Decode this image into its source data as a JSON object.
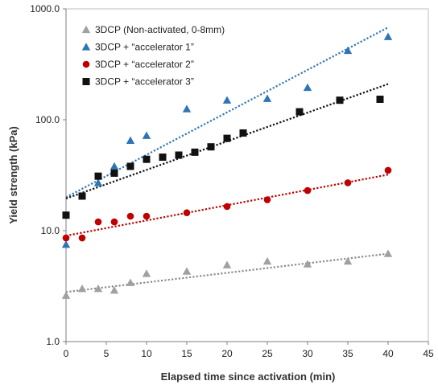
{
  "chart_data": {
    "type": "scatter",
    "title": "",
    "xlabel": "Elapsed time since activation (min)",
    "ylabel": "Yield strength (kPa)",
    "xlim": [
      0,
      45
    ],
    "ylim": [
      1,
      1000
    ],
    "y_scale": "log",
    "x_ticks": [
      "0",
      "5",
      "10",
      "15",
      "20",
      "25",
      "30",
      "35",
      "40",
      "45"
    ],
    "y_ticks": [
      "1.0",
      "10.0",
      "100.0",
      "1000.0"
    ],
    "grid": false,
    "legend_position": "top-left",
    "series": [
      {
        "name": "3DCP (Non-activated, 0-8mm)",
        "marker": "triangle",
        "color": "#a0a0a0",
        "x": [
          0,
          2,
          4,
          6,
          8,
          10,
          15,
          20,
          25,
          30,
          35,
          40
        ],
        "y": [
          2.6,
          3.0,
          3.0,
          2.9,
          3.4,
          4.1,
          4.3,
          4.9,
          5.3,
          5.0,
          5.3,
          6.2
        ],
        "trend": [
          2.8,
          6.2
        ]
      },
      {
        "name": "3DCP + “accelerator 1”",
        "marker": "triangle",
        "color": "#2e75b6",
        "x": [
          0,
          4,
          6,
          8,
          10,
          15,
          20,
          25,
          30,
          35,
          40
        ],
        "y": [
          7.5,
          27,
          38,
          65,
          72,
          125,
          150,
          155,
          195,
          420,
          560
        ],
        "trend": [
          20,
          680
        ]
      },
      {
        "name": "3DCP + “accelerator 2”",
        "marker": "circle",
        "color": "#c00000",
        "x": [
          0,
          2,
          4,
          6,
          8,
          10,
          15,
          20,
          25,
          30,
          35,
          40
        ],
        "y": [
          8.6,
          8.6,
          12,
          12,
          13.5,
          13.5,
          14.5,
          16.5,
          19,
          23,
          27,
          35
        ],
        "trend": [
          9,
          32
        ]
      },
      {
        "name": "3DCP + “accelerator 3”",
        "marker": "square",
        "color": "#111111",
        "x": [
          0,
          2,
          4,
          6,
          8,
          10,
          12,
          14,
          16,
          18,
          20,
          22,
          29,
          34,
          39
        ],
        "y": [
          13.8,
          20.5,
          31,
          33,
          38,
          44,
          46,
          48,
          51,
          57,
          68,
          76,
          118,
          150,
          153
        ],
        "trend": [
          19.5,
          210
        ]
      }
    ]
  }
}
